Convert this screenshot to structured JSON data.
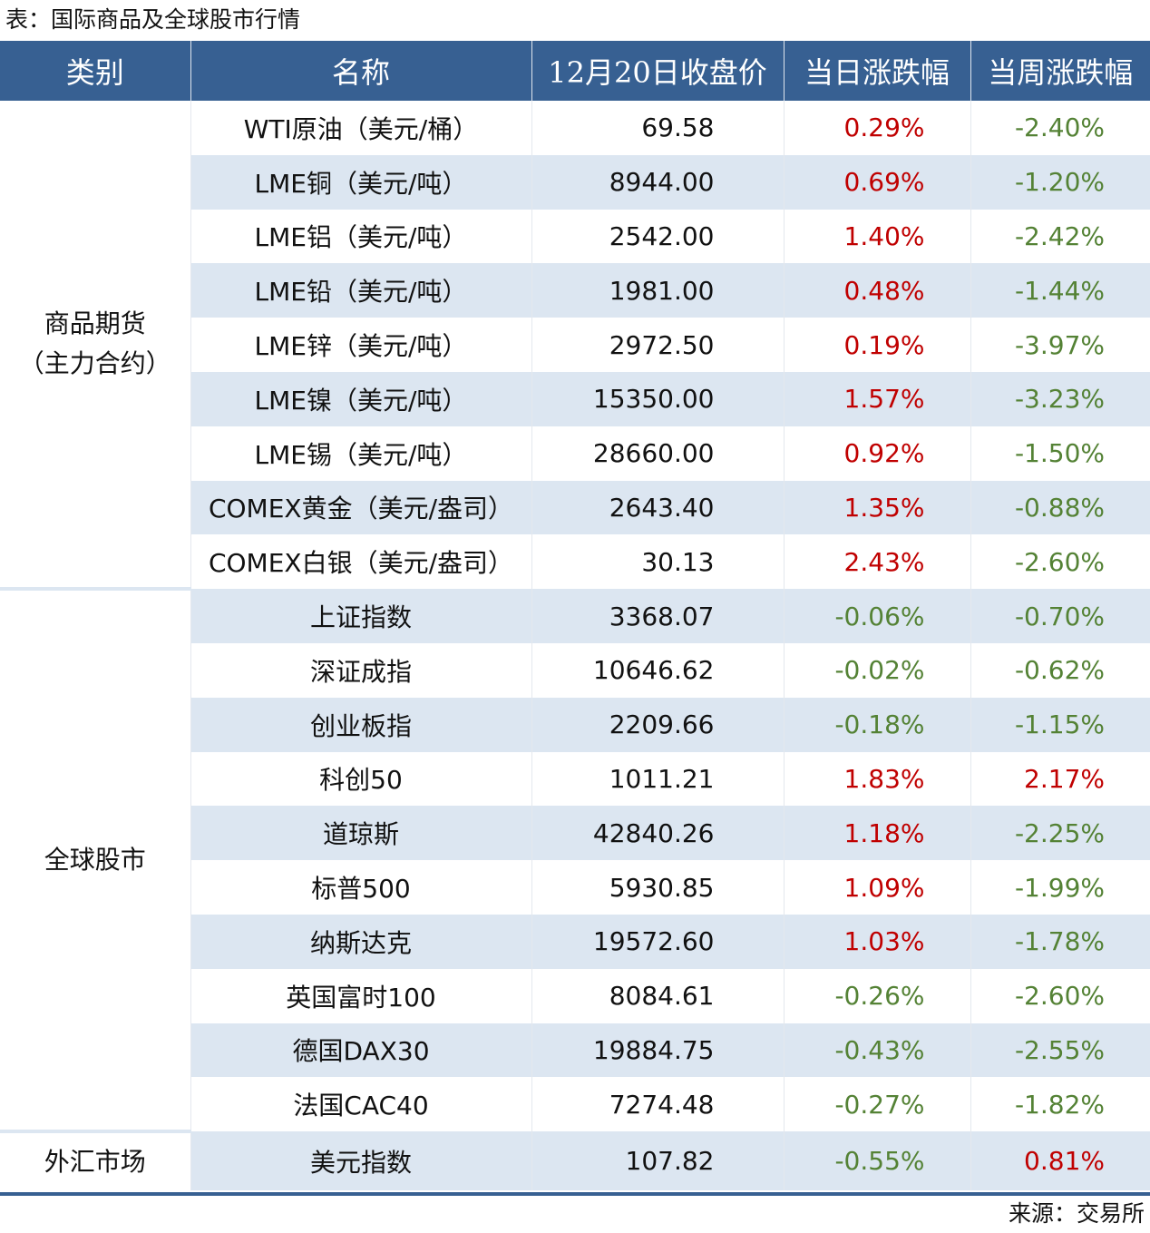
{
  "title": "表：国际商品及全球股市行情",
  "headers": [
    "类别",
    "名称",
    "12月20日收盘价",
    "当日涨跌幅",
    "当周涨跌幅"
  ],
  "colors": {
    "header": "#376092",
    "shade": "#dce6f1",
    "up": "#c00000",
    "down": "#548235"
  },
  "sections": [
    {
      "category": [
        "商品期货",
        "（主力合约）"
      ],
      "rows": [
        {
          "name": "WTI原油（美元/桶）",
          "close": "69.58",
          "day": "0.29%",
          "week": "-2.40%"
        },
        {
          "name": "LME铜（美元/吨）",
          "close": "8944.00",
          "day": "0.69%",
          "week": "-1.20%"
        },
        {
          "name": "LME铝（美元/吨）",
          "close": "2542.00",
          "day": "1.40%",
          "week": "-2.42%"
        },
        {
          "name": "LME铅（美元/吨）",
          "close": "1981.00",
          "day": "0.48%",
          "week": "-1.44%"
        },
        {
          "name": "LME锌（美元/吨）",
          "close": "2972.50",
          "day": "0.19%",
          "week": "-3.97%"
        },
        {
          "name": "LME镍（美元/吨）",
          "close": "15350.00",
          "day": "1.57%",
          "week": "-3.23%"
        },
        {
          "name": "LME锡（美元/吨）",
          "close": "28660.00",
          "day": "0.92%",
          "week": "-1.50%"
        },
        {
          "name": "COMEX黄金（美元/盎司）",
          "close": "2643.40",
          "day": "1.35%",
          "week": "-0.88%"
        },
        {
          "name": "COMEX白银（美元/盎司）",
          "close": "30.13",
          "day": "2.43%",
          "week": "-2.60%"
        }
      ]
    },
    {
      "category": [
        "全球股市"
      ],
      "rows": [
        {
          "name": "上证指数",
          "close": "3368.07",
          "day": "-0.06%",
          "week": "-0.70%"
        },
        {
          "name": "深证成指",
          "close": "10646.62",
          "day": "-0.02%",
          "week": "-0.62%"
        },
        {
          "name": "创业板指",
          "close": "2209.66",
          "day": "-0.18%",
          "week": "-1.15%"
        },
        {
          "name": "科创50",
          "close": "1011.21",
          "day": "1.83%",
          "week": "2.17%"
        },
        {
          "name": "道琼斯",
          "close": "42840.26",
          "day": "1.18%",
          "week": "-2.25%"
        },
        {
          "name": "标普500",
          "close": "5930.85",
          "day": "1.09%",
          "week": "-1.99%"
        },
        {
          "name": "纳斯达克",
          "close": "19572.60",
          "day": "1.03%",
          "week": "-1.78%"
        },
        {
          "name": "英国富时100",
          "close": "8084.61",
          "day": "-0.26%",
          "week": "-2.60%"
        },
        {
          "name": "德国DAX30",
          "close": "19884.75",
          "day": "-0.43%",
          "week": "-2.55%"
        },
        {
          "name": "法国CAC40",
          "close": "7274.48",
          "day": "-0.27%",
          "week": "-1.82%"
        }
      ]
    },
    {
      "category": [
        "外汇市场"
      ],
      "rows": [
        {
          "name": "美元指数",
          "close": "107.82",
          "day": "-0.55%",
          "week": "0.81%"
        }
      ]
    }
  ],
  "source": "来源：交易所"
}
